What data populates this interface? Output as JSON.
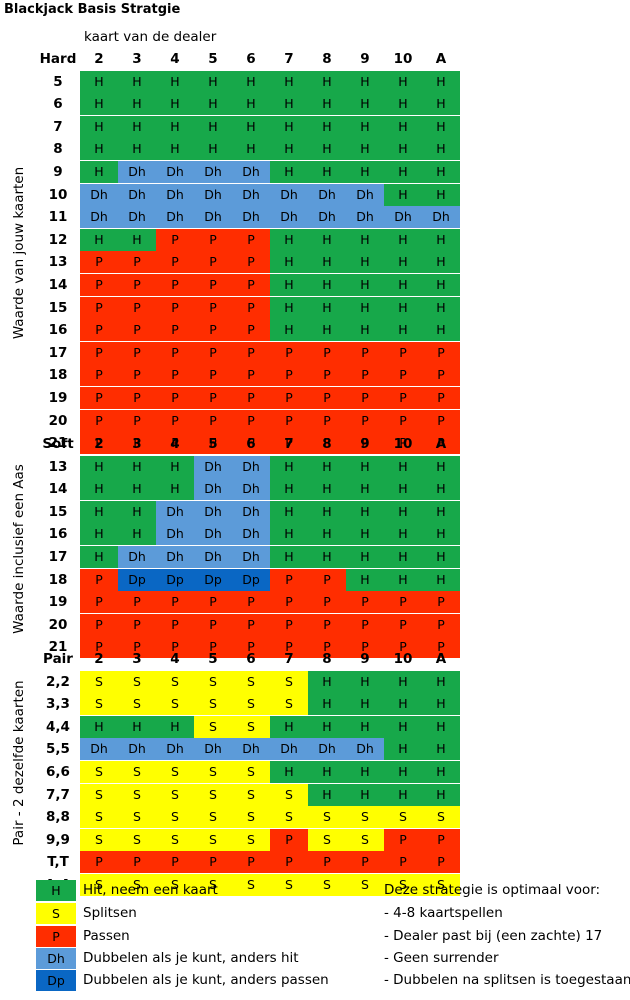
{
  "title": "Blackjack Basis Stratgie",
  "dealer_label": "kaart van de dealer",
  "dealer_cards": [
    "2",
    "3",
    "4",
    "5",
    "6",
    "7",
    "8",
    "9",
    "10",
    "A"
  ],
  "side_labels": {
    "hard": "Waarde van jouw kaarten",
    "soft": "Waarde inclusief een Aas",
    "pair": "Pair - 2 dezelfde kaarten"
  },
  "sections": [
    {
      "key": "hard",
      "header": "Hard",
      "rows": [
        {
          "label": "5",
          "cells": [
            "H",
            "H",
            "H",
            "H",
            "H",
            "H",
            "H",
            "H",
            "H",
            "H"
          ]
        },
        {
          "label": "6",
          "cells": [
            "H",
            "H",
            "H",
            "H",
            "H",
            "H",
            "H",
            "H",
            "H",
            "H"
          ]
        },
        {
          "label": "7",
          "cells": [
            "H",
            "H",
            "H",
            "H",
            "H",
            "H",
            "H",
            "H",
            "H",
            "H"
          ]
        },
        {
          "label": "8",
          "cells": [
            "H",
            "H",
            "H",
            "H",
            "H",
            "H",
            "H",
            "H",
            "H",
            "H"
          ]
        },
        {
          "label": "9",
          "cells": [
            "H",
            "Dh",
            "Dh",
            "Dh",
            "Dh",
            "H",
            "H",
            "H",
            "H",
            "H"
          ]
        },
        {
          "label": "10",
          "cells": [
            "Dh",
            "Dh",
            "Dh",
            "Dh",
            "Dh",
            "Dh",
            "Dh",
            "Dh",
            "H",
            "H"
          ]
        },
        {
          "label": "11",
          "cells": [
            "Dh",
            "Dh",
            "Dh",
            "Dh",
            "Dh",
            "Dh",
            "Dh",
            "Dh",
            "Dh",
            "Dh"
          ]
        },
        {
          "label": "12",
          "cells": [
            "H",
            "H",
            "P",
            "P",
            "P",
            "H",
            "H",
            "H",
            "H",
            "H"
          ]
        },
        {
          "label": "13",
          "cells": [
            "P",
            "P",
            "P",
            "P",
            "P",
            "H",
            "H",
            "H",
            "H",
            "H"
          ]
        },
        {
          "label": "14",
          "cells": [
            "P",
            "P",
            "P",
            "P",
            "P",
            "H",
            "H",
            "H",
            "H",
            "H"
          ]
        },
        {
          "label": "15",
          "cells": [
            "P",
            "P",
            "P",
            "P",
            "P",
            "H",
            "H",
            "H",
            "H",
            "H"
          ]
        },
        {
          "label": "16",
          "cells": [
            "P",
            "P",
            "P",
            "P",
            "P",
            "H",
            "H",
            "H",
            "H",
            "H"
          ]
        },
        {
          "label": "17",
          "cells": [
            "P",
            "P",
            "P",
            "P",
            "P",
            "P",
            "P",
            "P",
            "P",
            "P"
          ]
        },
        {
          "label": "18",
          "cells": [
            "P",
            "P",
            "P",
            "P",
            "P",
            "P",
            "P",
            "P",
            "P",
            "P"
          ]
        },
        {
          "label": "19",
          "cells": [
            "P",
            "P",
            "P",
            "P",
            "P",
            "P",
            "P",
            "P",
            "P",
            "P"
          ]
        },
        {
          "label": "20",
          "cells": [
            "P",
            "P",
            "P",
            "P",
            "P",
            "P",
            "P",
            "P",
            "P",
            "P"
          ]
        },
        {
          "label": "21",
          "cells": [
            "P",
            "P",
            "P",
            "P",
            "P",
            "P",
            "P",
            "P",
            "P",
            "P"
          ]
        }
      ]
    },
    {
      "key": "soft",
      "header": "Soft",
      "rows": [
        {
          "label": "13",
          "cells": [
            "H",
            "H",
            "H",
            "Dh",
            "Dh",
            "H",
            "H",
            "H",
            "H",
            "H"
          ]
        },
        {
          "label": "14",
          "cells": [
            "H",
            "H",
            "H",
            "Dh",
            "Dh",
            "H",
            "H",
            "H",
            "H",
            "H"
          ]
        },
        {
          "label": "15",
          "cells": [
            "H",
            "H",
            "Dh",
            "Dh",
            "Dh",
            "H",
            "H",
            "H",
            "H",
            "H"
          ]
        },
        {
          "label": "16",
          "cells": [
            "H",
            "H",
            "Dh",
            "Dh",
            "Dh",
            "H",
            "H",
            "H",
            "H",
            "H"
          ]
        },
        {
          "label": "17",
          "cells": [
            "H",
            "Dh",
            "Dh",
            "Dh",
            "Dh",
            "H",
            "H",
            "H",
            "H",
            "H"
          ]
        },
        {
          "label": "18",
          "cells": [
            "P",
            "Dp",
            "Dp",
            "Dp",
            "Dp",
            "P",
            "P",
            "H",
            "H",
            "H"
          ]
        },
        {
          "label": "19",
          "cells": [
            "P",
            "P",
            "P",
            "P",
            "P",
            "P",
            "P",
            "P",
            "P",
            "P"
          ]
        },
        {
          "label": "20",
          "cells": [
            "P",
            "P",
            "P",
            "P",
            "P",
            "P",
            "P",
            "P",
            "P",
            "P"
          ]
        },
        {
          "label": "21",
          "cells": [
            "P",
            "P",
            "P",
            "P",
            "P",
            "P",
            "P",
            "P",
            "P",
            "P"
          ]
        }
      ]
    },
    {
      "key": "pair",
      "header": "Pair",
      "rows": [
        {
          "label": "2,2",
          "cells": [
            "S",
            "S",
            "S",
            "S",
            "S",
            "S",
            "H",
            "H",
            "H",
            "H"
          ]
        },
        {
          "label": "3,3",
          "cells": [
            "S",
            "S",
            "S",
            "S",
            "S",
            "S",
            "H",
            "H",
            "H",
            "H"
          ]
        },
        {
          "label": "4,4",
          "cells": [
            "H",
            "H",
            "H",
            "S",
            "S",
            "H",
            "H",
            "H",
            "H",
            "H"
          ]
        },
        {
          "label": "5,5",
          "cells": [
            "Dh",
            "Dh",
            "Dh",
            "Dh",
            "Dh",
            "Dh",
            "Dh",
            "Dh",
            "H",
            "H"
          ]
        },
        {
          "label": "6,6",
          "cells": [
            "S",
            "S",
            "S",
            "S",
            "S",
            "H",
            "H",
            "H",
            "H",
            "H"
          ]
        },
        {
          "label": "7,7",
          "cells": [
            "S",
            "S",
            "S",
            "S",
            "S",
            "S",
            "H",
            "H",
            "H",
            "H"
          ]
        },
        {
          "label": "8,8",
          "cells": [
            "S",
            "S",
            "S",
            "S",
            "S",
            "S",
            "S",
            "S",
            "S",
            "S"
          ]
        },
        {
          "label": "9,9",
          "cells": [
            "S",
            "S",
            "S",
            "S",
            "S",
            "P",
            "S",
            "S",
            "P",
            "P"
          ]
        },
        {
          "label": "T,T",
          "cells": [
            "P",
            "P",
            "P",
            "P",
            "P",
            "P",
            "P",
            "P",
            "P",
            "P"
          ]
        },
        {
          "label": "A,A",
          "cells": [
            "S",
            "S",
            "S",
            "S",
            "S",
            "S",
            "S",
            "S",
            "S",
            "S"
          ]
        }
      ]
    }
  ],
  "legend": [
    {
      "code": "H",
      "text": "Hit, neem een kaart"
    },
    {
      "code": "S",
      "text": "Splitsen"
    },
    {
      "code": "P",
      "text": "Passen"
    },
    {
      "code": "Dh",
      "text": "Dubbelen als je kunt, anders hit"
    },
    {
      "code": "Dp",
      "text": "Dubbelen als je kunt, anders passen"
    }
  ],
  "notes": {
    "heading": "Deze strategie is optimaal voor:",
    "items": [
      "- 4-8 kaartspellen",
      "- Dealer past bij (een zachte) 17",
      "- Geen surrender",
      "- Dubbelen na splitsen is toegestaan"
    ]
  },
  "colors": {
    "H": "#17a84a",
    "S": "#ffff00",
    "P": "#ff2d00",
    "Dh": "#5c9bd9",
    "Dp": "#0a67c4"
  }
}
